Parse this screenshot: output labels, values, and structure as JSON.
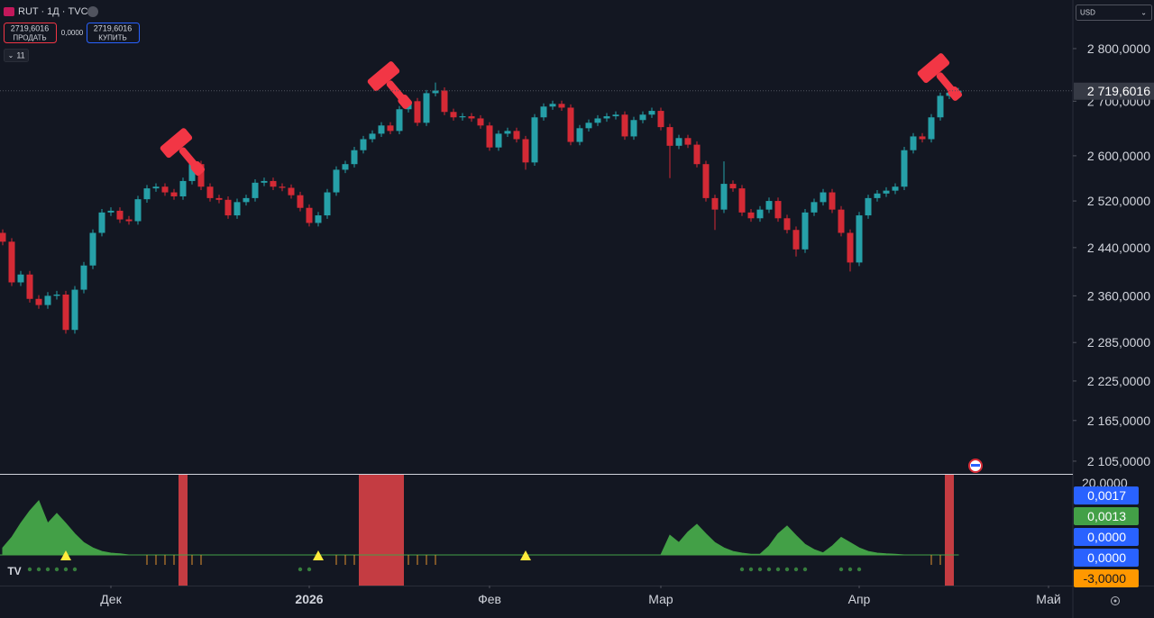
{
  "header": {
    "symbol": "RUT · 1Д · TVC",
    "sell_price": "2719,6016",
    "sell_label": "ПРОДАТЬ",
    "spread": "0,0000",
    "buy_price": "2719,6016",
    "buy_label": "КУПИТЬ",
    "indicators_count": "11",
    "currency": "USD"
  },
  "chart_data": {
    "type": "candlestick",
    "log_scale": true,
    "grid": false,
    "up_color": "#26a0a8",
    "down_color": "#d42a35",
    "xlim": [
      -0.3,
      118.7
    ],
    "xticks": [
      {
        "value": 12,
        "label": "Дек"
      },
      {
        "value": 34,
        "label": "2026"
      },
      {
        "value": 54,
        "label": "Фев"
      },
      {
        "value": 73,
        "label": "Мар"
      },
      {
        "value": 95,
        "label": "Апр"
      },
      {
        "value": 116,
        "label": "Май"
      }
    ],
    "ylim": [
      2086.6,
      2895.7
    ],
    "yticks": [
      {
        "value": 2800,
        "label": "2 800,0000"
      },
      {
        "value": 2700,
        "label": "2 700,0000"
      },
      {
        "value": 2600,
        "label": "2 600,0000"
      },
      {
        "value": 2520,
        "label": "2 520,0000"
      },
      {
        "value": 2440,
        "label": "2 440,0000"
      },
      {
        "value": 2360,
        "label": "2 360,0000"
      },
      {
        "value": 2285,
        "label": "2 285,0000"
      },
      {
        "value": 2225,
        "label": "2 225,0000"
      },
      {
        "value": 2165,
        "label": "2 165,0000"
      },
      {
        "value": 2105,
        "label": "2 105,0000"
      }
    ],
    "last_label": "2 719,6016",
    "open": [
      2465,
      2450,
      2382,
      2395,
      2355,
      2345,
      2360,
      2362,
      2305,
      2370,
      2410,
      2465,
      2500,
      2503,
      2488,
      2485,
      2523,
      2542,
      2545,
      2535,
      2528,
      2555,
      2585,
      2545,
      2525,
      2522,
      2495,
      2518,
      2525,
      2552,
      2555,
      2545,
      2543,
      2530,
      2508,
      2482,
      2495,
      2535,
      2575,
      2585,
      2610,
      2630,
      2640,
      2655,
      2645,
      2685,
      2700,
      2660,
      2715,
      2720,
      2680,
      2670,
      2672,
      2668,
      2655,
      2615,
      2640,
      2645,
      2630,
      2588,
      2670,
      2690,
      2695,
      2688,
      2625,
      2650,
      2660,
      2668,
      2672,
      2675,
      2635,
      2665,
      2675,
      2682,
      2652,
      2618,
      2632,
      2620,
      2585,
      2525,
      2505,
      2550,
      2542,
      2500,
      2490,
      2505,
      2520,
      2490,
      2470,
      2437,
      2500,
      2518,
      2535,
      2505,
      2465,
      2415,
      2495,
      2525,
      2533,
      2538,
      2545,
      2610,
      2635,
      2630,
      2670,
      2710,
      2716
    ],
    "high": [
      2471,
      2456,
      2401,
      2401,
      2361,
      2366,
      2368,
      2368,
      2376,
      2416,
      2471,
      2506,
      2509,
      2509,
      2494,
      2529,
      2548,
      2551,
      2551,
      2541,
      2561,
      2591,
      2591,
      2551,
      2531,
      2528,
      2524,
      2531,
      2558,
      2561,
      2561,
      2551,
      2549,
      2536,
      2514,
      2501,
      2541,
      2581,
      2591,
      2616,
      2636,
      2646,
      2661,
      2661,
      2691,
      2706,
      2706,
      2721,
      2735,
      2726,
      2686,
      2678,
      2678,
      2674,
      2661,
      2646,
      2651,
      2651,
      2636,
      2676,
      2696,
      2701,
      2701,
      2694,
      2656,
      2666,
      2674,
      2678,
      2681,
      2681,
      2671,
      2681,
      2688,
      2688,
      2658,
      2638,
      2638,
      2626,
      2591,
      2531,
      2590,
      2556,
      2548,
      2506,
      2511,
      2526,
      2526,
      2496,
      2476,
      2506,
      2524,
      2541,
      2541,
      2511,
      2471,
      2501,
      2531,
      2539,
      2544,
      2551,
      2616,
      2641,
      2641,
      2676,
      2716,
      2722,
      2725
    ],
    "low": [
      2444,
      2376,
      2376,
      2349,
      2339,
      2339,
      2354,
      2299,
      2299,
      2364,
      2404,
      2459,
      2494,
      2482,
      2479,
      2479,
      2517,
      2536,
      2529,
      2522,
      2522,
      2549,
      2539,
      2519,
      2516,
      2489,
      2489,
      2512,
      2519,
      2546,
      2539,
      2537,
      2524,
      2502,
      2476,
      2476,
      2489,
      2529,
      2569,
      2579,
      2604,
      2624,
      2634,
      2639,
      2639,
      2679,
      2654,
      2654,
      2709,
      2674,
      2664,
      2664,
      2662,
      2649,
      2609,
      2609,
      2634,
      2624,
      2575,
      2582,
      2664,
      2684,
      2682,
      2619,
      2619,
      2644,
      2654,
      2662,
      2666,
      2629,
      2629,
      2659,
      2669,
      2646,
      2560,
      2612,
      2614,
      2579,
      2519,
      2470,
      2499,
      2536,
      2494,
      2484,
      2484,
      2499,
      2484,
      2464,
      2425,
      2431,
      2494,
      2512,
      2499,
      2459,
      2400,
      2409,
      2489,
      2519,
      2527,
      2532,
      2539,
      2604,
      2624,
      2624,
      2664,
      2704,
      2710
    ],
    "close": [
      2450,
      2382,
      2395,
      2355,
      2345,
      2360,
      2362,
      2305,
      2370,
      2410,
      2465,
      2500,
      2503,
      2488,
      2485,
      2523,
      2542,
      2545,
      2535,
      2528,
      2555,
      2585,
      2545,
      2525,
      2522,
      2495,
      2518,
      2525,
      2552,
      2555,
      2545,
      2543,
      2530,
      2508,
      2482,
      2495,
      2535,
      2575,
      2585,
      2610,
      2630,
      2640,
      2655,
      2645,
      2685,
      2700,
      2660,
      2715,
      2720,
      2680,
      2670,
      2672,
      2668,
      2655,
      2615,
      2640,
      2645,
      2630,
      2588,
      2670,
      2690,
      2695,
      2688,
      2625,
      2650,
      2660,
      2668,
      2672,
      2675,
      2635,
      2665,
      2675,
      2682,
      2652,
      2618,
      2632,
      2620,
      2585,
      2525,
      2505,
      2550,
      2542,
      2500,
      2490,
      2505,
      2520,
      2490,
      2470,
      2437,
      2500,
      2518,
      2535,
      2505,
      2465,
      2415,
      2495,
      2525,
      2533,
      2538,
      2545,
      2610,
      2635,
      2630,
      2670,
      2710,
      2716,
      2719.6016
    ],
    "hammer_bars": [
      19,
      42,
      103
    ],
    "indicator": {
      "y2lim": [
        -8.72,
        22.82
      ],
      "top_label": "20,0000",
      "area_color": "#43a047",
      "zone_color": "#c43c42",
      "oscillator": [
        2,
        5,
        9,
        12.5,
        15.4,
        9,
        11.8,
        9,
        6,
        3.5,
        2,
        1,
        0.5,
        0.3,
        0,
        0,
        0,
        0,
        0,
        0,
        0,
        0,
        0,
        0,
        0,
        0,
        0,
        0,
        0,
        0,
        0,
        0,
        0,
        0,
        0,
        0,
        0,
        0,
        0,
        0,
        0,
        0,
        0,
        0,
        0,
        0,
        0,
        0,
        0,
        0,
        0,
        0,
        0,
        0,
        0,
        0,
        0,
        0,
        0,
        0,
        0,
        0,
        0,
        0,
        0,
        0,
        0,
        0,
        0,
        0,
        0,
        0,
        0,
        0,
        5.6,
        3.5,
        6.5,
        8.7,
        6,
        3.5,
        2,
        1,
        0.5,
        0.2,
        0.2,
        2.5,
        6,
        8.2,
        5.5,
        3,
        1.5,
        0.6,
        2.5,
        5,
        3.5,
        2,
        1,
        0.5,
        0.3,
        0.2,
        0,
        0,
        0,
        0,
        0,
        0,
        0
      ],
      "zone_bars": [
        20,
        40,
        41,
        42,
        43,
        44,
        105
      ],
      "triangle_bars": [
        7,
        35,
        58
      ],
      "dot_bars": [
        3,
        4,
        5,
        6,
        7,
        8,
        33,
        34,
        82,
        83,
        84,
        85,
        86,
        87,
        88,
        89,
        93,
        94,
        95
      ],
      "tick_bars": [
        16,
        17,
        18,
        19,
        21,
        22,
        37,
        38,
        39,
        45,
        46,
        47,
        48,
        103,
        104
      ],
      "labels": [
        "0,0017",
        "0,0013",
        "0,0000",
        "0,0000",
        "-3,0000"
      ],
      "label_colors": [
        "#2962ff",
        "#43a047",
        "#2962ff",
        "#2962ff",
        "#ff9800"
      ]
    }
  }
}
